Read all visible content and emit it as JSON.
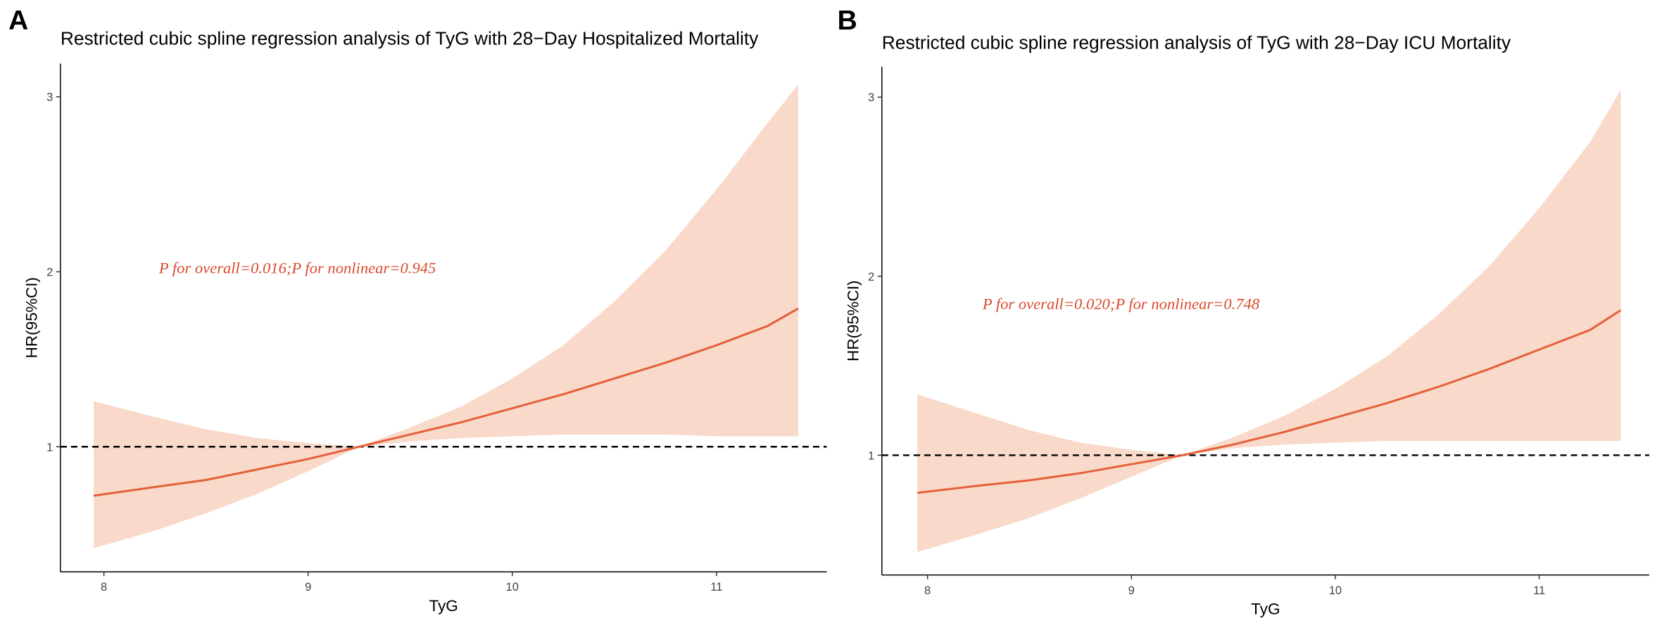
{
  "chart_data": [
    {
      "type": "line",
      "panel": "A",
      "title": "Restricted cubic spline regression analysis of TyG with 28−Day Hospitalized Mortality",
      "x_label": "TyG",
      "y_label": "HR(95%CI)",
      "annotation": "P for overall=0.016;P for nonlinear=0.945",
      "annotation_color": "#d94a2e",
      "x": [
        7.95,
        8.25,
        8.5,
        8.75,
        9,
        9.25,
        9.5,
        9.75,
        10,
        10.25,
        10.5,
        10.75,
        11,
        11.25,
        11.4
      ],
      "series": [
        {
          "color": "#e4603a",
          "values": [
            0.72,
            0.77,
            0.81,
            0.87,
            0.93,
            1.0,
            1.07,
            1.14,
            1.22,
            1.3,
            1.39,
            1.48,
            1.58,
            1.69,
            1.79
          ]
        }
      ],
      "band": {
        "color": "#f9d9c9",
        "lower": [
          0.42,
          0.52,
          0.62,
          0.73,
          0.86,
          1.0,
          1.03,
          1.05,
          1.06,
          1.07,
          1.07,
          1.07,
          1.06,
          1.06,
          1.06
        ],
        "upper": [
          1.26,
          1.17,
          1.1,
          1.05,
          1.02,
          1.0,
          1.11,
          1.23,
          1.39,
          1.58,
          1.83,
          2.12,
          2.47,
          2.85,
          3.07
        ]
      },
      "reference_line": 1,
      "xlim": [
        7.787,
        11.54
      ],
      "ylim": [
        0.285,
        3.19
      ],
      "xticks": [
        8,
        9,
        10,
        11
      ],
      "yticks": [
        1,
        2,
        3
      ]
    },
    {
      "type": "line",
      "panel": "B",
      "title": "Restricted cubic spline regression analysis of TyG with 28−Day ICU Mortality",
      "x_label": "TyG",
      "y_label": "HR(95%CI)",
      "annotation": "P for overall=0.020;P for nonlinear=0.748",
      "annotation_color": "#d94a2e",
      "x": [
        7.95,
        8.25,
        8.5,
        8.75,
        9,
        9.25,
        9.5,
        9.75,
        10,
        10.25,
        10.5,
        10.75,
        11,
        11.25,
        11.4
      ],
      "series": [
        {
          "color": "#e4603a",
          "values": [
            0.79,
            0.83,
            0.86,
            0.9,
            0.95,
            1.0,
            1.06,
            1.13,
            1.21,
            1.29,
            1.38,
            1.48,
            1.59,
            1.7,
            1.81
          ]
        }
      ],
      "band": {
        "color": "#f9d9c9",
        "lower": [
          0.46,
          0.56,
          0.65,
          0.76,
          0.88,
          1.0,
          1.04,
          1.06,
          1.07,
          1.08,
          1.08,
          1.08,
          1.08,
          1.08,
          1.08
        ],
        "upper": [
          1.34,
          1.23,
          1.14,
          1.07,
          1.03,
          1.0,
          1.1,
          1.22,
          1.37,
          1.55,
          1.78,
          2.05,
          2.38,
          2.75,
          3.04
        ]
      },
      "reference_line": 1,
      "xlim": [
        7.776,
        11.54
      ],
      "ylim": [
        0.331,
        3.17
      ],
      "xticks": [
        8,
        9,
        10,
        11
      ],
      "yticks": [
        1,
        2,
        3
      ]
    }
  ]
}
